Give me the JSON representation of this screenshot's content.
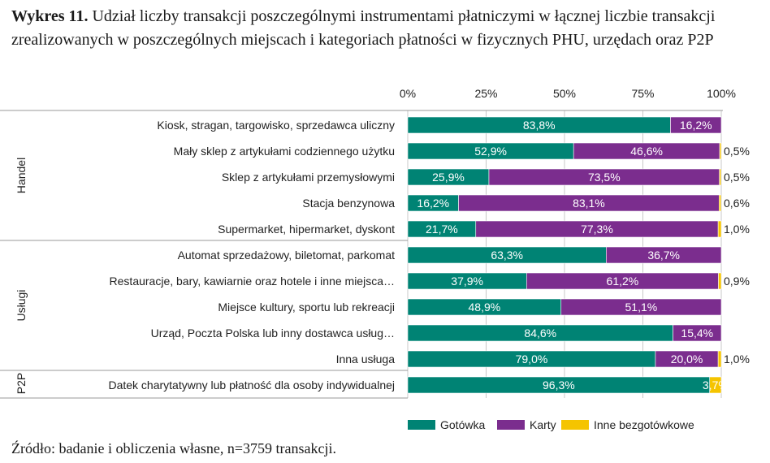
{
  "title": {
    "prefix": "Wykres 11.",
    "text": "Udział liczby transakcji poszczególnymi instrumentami płatniczymi w łącznej liczbie transakcji zrealizowanych w poszczególnych miejscach i kategoriach płatności w fizycznych PHU, urzędach oraz P2P"
  },
  "source": "Źródło: badanie i obliczenia własne, n=3759 transakcji.",
  "colors": {
    "cash": "#008374",
    "card": "#7b2d8e",
    "other": "#f5c400",
    "grid": "#c8c8c8",
    "separator": "#9a9a9a"
  },
  "chart_data": {
    "type": "bar",
    "orientation": "horizontal",
    "stacked": true,
    "xlim": [
      0,
      100
    ],
    "xticks": [
      "0%",
      "25%",
      "50%",
      "75%",
      "100%"
    ],
    "grid": true,
    "legend_position": "bottom",
    "groups": [
      {
        "label": "Handel",
        "start": 0,
        "end": 5
      },
      {
        "label": "Usługi",
        "start": 5,
        "end": 10
      },
      {
        "label": "P2P",
        "start": 10,
        "end": 11
      }
    ],
    "categories": [
      "Kiosk, stragan, targowisko, sprzedawca uliczny",
      "Mały sklep z artykułami codziennego użytku",
      "Sklep z artykułami przemysłowymi",
      "Stacja benzynowa",
      "Supermarket, hipermarket, dyskont",
      "Automat sprzedażowy, biletomat, parkomat",
      "Restauracje, bary, kawiarnie oraz hotele i inne miejsca…",
      "Miejsce kultury, sportu lub rekreacji",
      "Urząd, Poczta Polska lub inny dostawca usług…",
      "Inna usługa",
      "Datek charytatywny lub płatność dla osoby indywidualnej"
    ],
    "series": [
      {
        "name": "Gotówka",
        "color": "#008374",
        "values": [
          83.8,
          52.9,
          25.9,
          16.2,
          21.7,
          63.3,
          37.9,
          48.9,
          84.6,
          79.0,
          96.3
        ],
        "labels": [
          "83,8%",
          "52,9%",
          "25,9%",
          "16,2%",
          "21,7%",
          "63,3%",
          "37,9%",
          "48,9%",
          "84,6%",
          "79,0%",
          "96,3%"
        ]
      },
      {
        "name": "Karty",
        "color": "#7b2d8e",
        "values": [
          16.2,
          46.6,
          73.5,
          83.1,
          77.3,
          36.7,
          61.2,
          51.1,
          15.4,
          20.0,
          0
        ],
        "labels": [
          "16,2%",
          "46,6%",
          "73,5%",
          "83,1%",
          "77,3%",
          "36,7%",
          "61,2%",
          "51,1%",
          "15,4%",
          "20,0%",
          ""
        ]
      },
      {
        "name": "Inne bezgotówkowe",
        "color": "#f5c400",
        "values": [
          0,
          0.5,
          0.5,
          0.6,
          1.0,
          0,
          0.9,
          0,
          0,
          1.0,
          3.7
        ],
        "labels": [
          "",
          "0,5%",
          "0,5%",
          "0,6%",
          "1,0%",
          "",
          "0,9%",
          "",
          "",
          "1,0%",
          "3,7%"
        ]
      }
    ]
  }
}
